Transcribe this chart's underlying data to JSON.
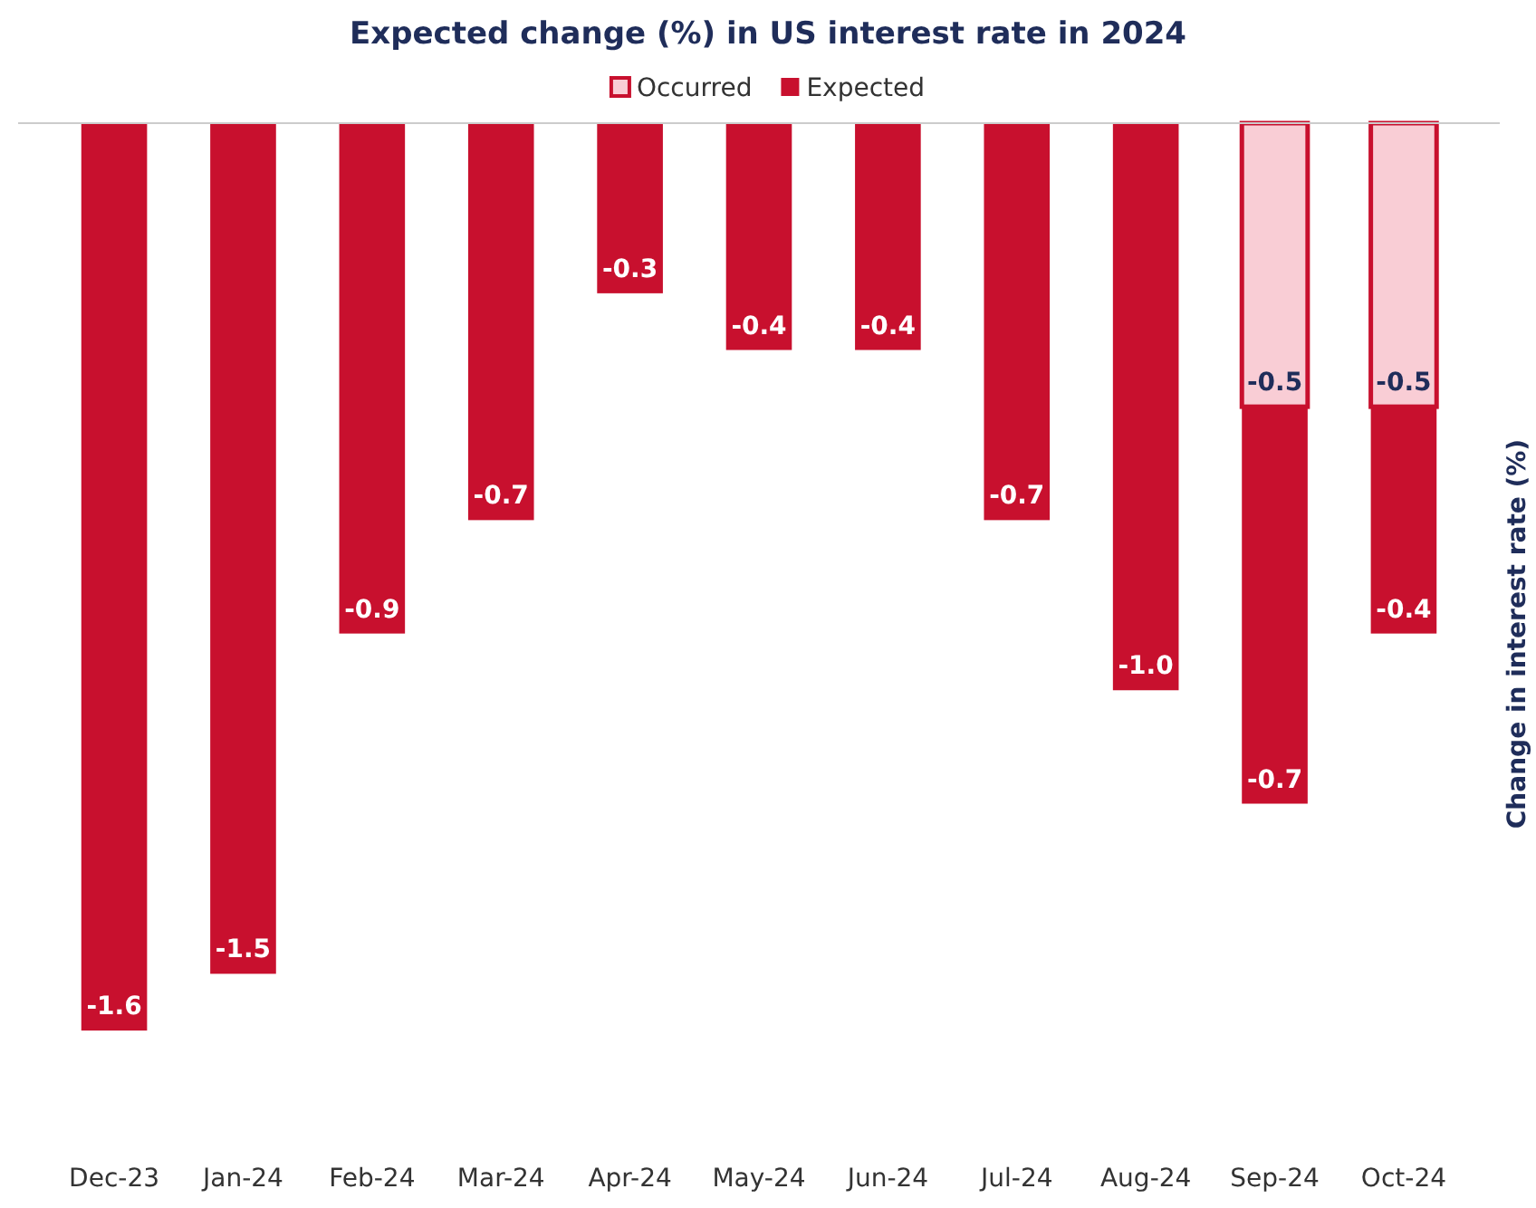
{
  "chart_data": {
    "type": "bar",
    "title": "Expected change (%) in US interest rate in 2024",
    "ylabel": "Change in interest rate (%)",
    "categories": [
      "Dec-23",
      "Jan-24",
      "Feb-24",
      "Mar-24",
      "Apr-24",
      "May-24",
      "Jun-24",
      "Jul-24",
      "Aug-24",
      "Sep-24",
      "Oct-24"
    ],
    "series": [
      {
        "name": "Occurred",
        "color": "#f9cdd5",
        "values": [
          null,
          null,
          null,
          null,
          null,
          null,
          null,
          null,
          null,
          -0.5,
          -0.5
        ],
        "value_labels": [
          null,
          null,
          null,
          null,
          null,
          null,
          null,
          null,
          null,
          "-0.5",
          "-0.5"
        ]
      },
      {
        "name": "Expected",
        "color": "#c8102e",
        "values": [
          -1.6,
          -1.5,
          -0.9,
          -0.7,
          -0.3,
          -0.4,
          -0.4,
          -0.7,
          -1.0,
          -0.7,
          -0.4
        ],
        "value_labels": [
          "-1.6",
          "-1.5",
          "-0.9",
          "-0.7",
          "-0.3",
          "-0.4",
          "-0.4",
          "-0.7",
          "-1.0",
          "-0.7",
          "-0.4"
        ]
      }
    ],
    "stacked": true,
    "legend": "top"
  }
}
